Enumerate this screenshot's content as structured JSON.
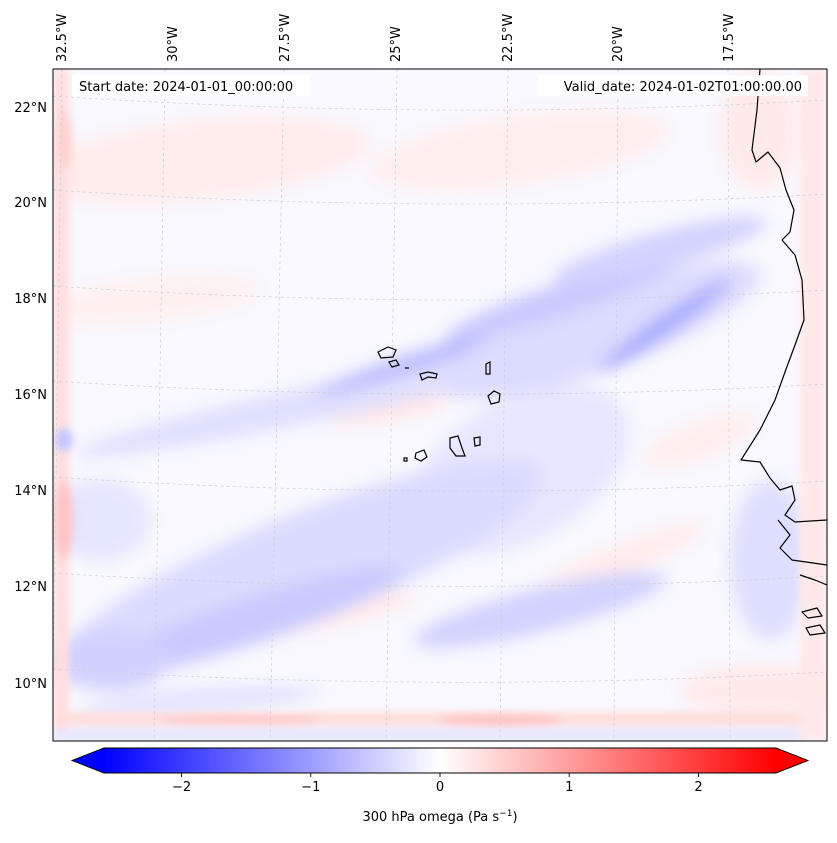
{
  "header": {
    "start_date": "Start date: 2024-01-01_00:00:00",
    "valid_date": "Valid_date: 2024-01-02T01:00:00.00"
  },
  "map": {
    "projection": "Lambert conformal (tilted graticule)",
    "lon_labels": [
      "32.5°W",
      "30°W",
      "27.5°W",
      "25°W",
      "22.5°W",
      "20°W",
      "17.5°W"
    ],
    "lat_labels": [
      "22°N",
      "20°N",
      "18°N",
      "16°N",
      "14°N",
      "12°N",
      "10°N"
    ],
    "gridlines": "dashed light gray",
    "features": [
      "Cape Verde islands",
      "West African coastline (Mauritania, Senegal, Guinea-Bissau)"
    ]
  },
  "colorbar": {
    "colormap": "bwr",
    "min_color": "#0000ff",
    "mid_color": "#ffffff",
    "max_color": "#ff0000",
    "range": [
      -2.6,
      2.6
    ],
    "extend": "both",
    "ticks": [
      "−2",
      "−1",
      "0",
      "1",
      "2"
    ],
    "tick_values": [
      -2,
      -1,
      0,
      1,
      2
    ],
    "label_main": "300 hPa omega (Pa s",
    "label_sup": "−1",
    "label_end": ")"
  },
  "chart_data": {
    "type": "heatmap",
    "variable": "300 hPa omega",
    "units": "Pa s−1",
    "value_range": [
      -2.6,
      2.6
    ],
    "typical_field_range": [
      -1.0,
      0.6
    ],
    "pattern": "weak ascent (blue, about −0.3 to −0.9) in SW–NE bands across the domain, strongest band near 18°N–16°N east of Cape Verde; weak descent (pink, about 0.2 to 0.5) along the domain edges and in scattered streaks"
  }
}
